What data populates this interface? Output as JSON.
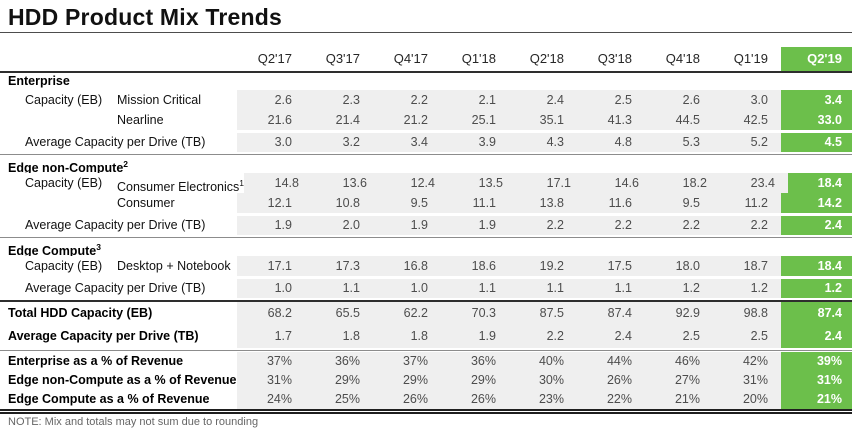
{
  "title": "HDD Product Mix Trends",
  "colors": {
    "highlight_green": "#6cbf4b",
    "band_gray": "#efefef"
  },
  "chart_data": {
    "type": "table",
    "title": "HDD Product Mix Trends",
    "columns": [
      "Q2'17",
      "Q3'17",
      "Q4'17",
      "Q1'18",
      "Q2'18",
      "Q3'18",
      "Q4'18",
      "Q1'19",
      "Q2'19"
    ],
    "highlight_column": "Q2'19",
    "sections": [
      {
        "name": "Enterprise",
        "sup": "",
        "rows": [
          {
            "kind": "data",
            "label1": "Capacity (EB)",
            "label2": "Mission Critical",
            "sup": "",
            "values": [
              "2.6",
              "2.3",
              "2.2",
              "2.1",
              "2.4",
              "2.5",
              "2.6",
              "3.0",
              "3.4"
            ]
          },
          {
            "kind": "data",
            "label1": "",
            "label2": "Nearline",
            "sup": "",
            "values": [
              "21.6",
              "21.4",
              "21.2",
              "25.1",
              "35.1",
              "41.3",
              "44.5",
              "42.5",
              "33.0"
            ]
          },
          {
            "kind": "avg",
            "label1": "Average Capacity per Drive (TB)",
            "label2": "",
            "sup": "",
            "values": [
              "3.0",
              "3.2",
              "3.4",
              "3.9",
              "4.3",
              "4.8",
              "5.3",
              "5.2",
              "4.5"
            ]
          }
        ]
      },
      {
        "name": "Edge non-Compute",
        "sup": "2",
        "rows": [
          {
            "kind": "data",
            "label1": "Capacity (EB)",
            "label2": "Consumer Electronics",
            "sup": "1",
            "values": [
              "14.8",
              "13.6",
              "12.4",
              "13.5",
              "17.1",
              "14.6",
              "18.2",
              "23.4",
              "18.4"
            ]
          },
          {
            "kind": "data",
            "label1": "",
            "label2": "Consumer",
            "sup": "",
            "values": [
              "12.1",
              "10.8",
              "9.5",
              "11.1",
              "13.8",
              "11.6",
              "9.5",
              "11.2",
              "14.2"
            ]
          },
          {
            "kind": "avg",
            "label1": "Average Capacity per Drive (TB)",
            "label2": "",
            "sup": "",
            "values": [
              "1.9",
              "2.0",
              "1.9",
              "1.9",
              "2.2",
              "2.2",
              "2.2",
              "2.2",
              "2.4"
            ]
          }
        ]
      },
      {
        "name": "Edge Compute",
        "sup": "3",
        "rows": [
          {
            "kind": "data",
            "label1": "Capacity (EB)",
            "label2": "Desktop + Notebook",
            "sup": "",
            "values": [
              "17.1",
              "17.3",
              "16.8",
              "18.6",
              "19.2",
              "17.5",
              "18.0",
              "18.7",
              "18.4"
            ]
          },
          {
            "kind": "avg",
            "label1": "Average Capacity per Drive (TB)",
            "label2": "",
            "sup": "",
            "values": [
              "1.0",
              "1.1",
              "1.0",
              "1.1",
              "1.1",
              "1.1",
              "1.2",
              "1.2",
              "1.2"
            ]
          }
        ]
      }
    ],
    "summary_rows": [
      {
        "label": "Total HDD Capacity (EB)",
        "values": [
          "68.2",
          "65.5",
          "62.2",
          "70.3",
          "87.5",
          "87.4",
          "92.9",
          "98.8",
          "87.4"
        ]
      },
      {
        "label": "Average Capacity per Drive (TB)",
        "values": [
          "1.7",
          "1.8",
          "1.8",
          "1.9",
          "2.2",
          "2.4",
          "2.5",
          "2.5",
          "2.4"
        ]
      }
    ],
    "revenue_rows": [
      {
        "label": "Enterprise as a % of Revenue",
        "values": [
          "37%",
          "36%",
          "37%",
          "36%",
          "40%",
          "44%",
          "46%",
          "42%",
          "39%"
        ]
      },
      {
        "label": "Edge non-Compute as a % of Revenue",
        "values": [
          "31%",
          "29%",
          "29%",
          "29%",
          "30%",
          "26%",
          "27%",
          "31%",
          "31%"
        ]
      },
      {
        "label": "Edge Compute as a % of Revenue",
        "values": [
          "24%",
          "25%",
          "26%",
          "26%",
          "23%",
          "22%",
          "21%",
          "20%",
          "21%"
        ]
      }
    ],
    "footnote": "NOTE: Mix and totals may not sum due to rounding"
  }
}
